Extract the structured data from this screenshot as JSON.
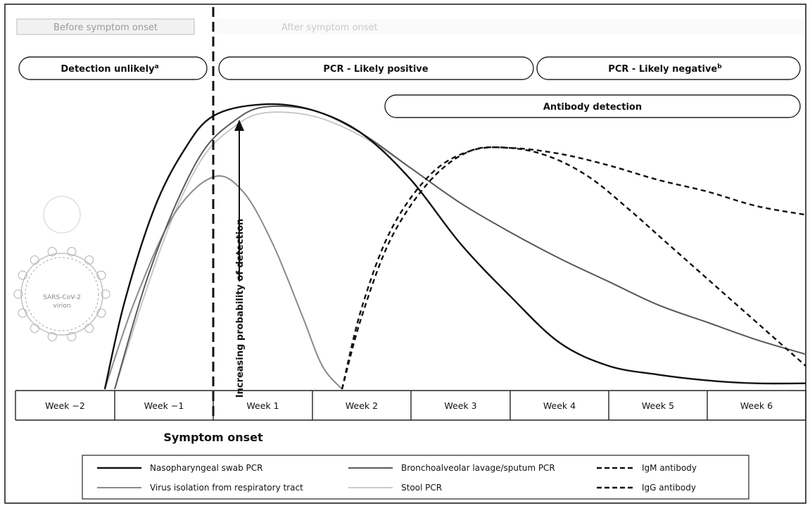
{
  "colors": {
    "black": "#111111",
    "gray_dark": "#5a5a5a",
    "gray_mid": "#8a8a8a",
    "gray_light": "#c8c8c8"
  },
  "header": {
    "before_label": "Before symptom onset",
    "after_label": "After symptom onset"
  },
  "phases": {
    "detection_unlikely": "Detection unlikely",
    "detection_unlikely_sup": "a",
    "pcr_positive": "PCR - Likely positive",
    "pcr_negative": "PCR - Likely negative",
    "pcr_negative_sup": "b",
    "antibody": "Antibody detection"
  },
  "arrow_label": "Increasing probability of detection",
  "onset_label": "Symptom onset",
  "virus_label_1": "SARS-CoV-2",
  "virus_label_2": "virion",
  "chart_data": {
    "type": "line",
    "xlabel": "",
    "ylabel": "Increasing probability of detection",
    "categories": [
      "Week −2",
      "Week −1",
      "Week 1",
      "Week 2",
      "Week 3",
      "Week 4",
      "Week 5",
      "Week 6"
    ],
    "x_range_weeks": [
      -2,
      6
    ],
    "ylim": [
      0,
      100
    ],
    "symptom_onset_x": 0,
    "series": [
      {
        "name": "Nasopharyngeal swab PCR",
        "style": "solid",
        "shade": "black",
        "x": [
          -1.1,
          -0.9,
          -0.6,
          -0.3,
          0,
          0.5,
          1.0,
          1.5,
          2.0,
          2.5,
          3.0,
          3.5,
          4.0,
          4.5,
          5.0,
          5.5,
          6.0
        ],
        "y": [
          0,
          30,
          62,
          82,
          94,
          98,
          96,
          88,
          72,
          50,
          32,
          16,
          8,
          5,
          3,
          2,
          2
        ]
      },
      {
        "name": "Bronchoalveolar lavage/sputum PCR",
        "style": "solid",
        "shade": "gray_dark",
        "x": [
          -1.0,
          -0.7,
          -0.4,
          -0.1,
          0.2,
          0.5,
          1.0,
          1.5,
          2.0,
          2.5,
          3.0,
          3.5,
          4.0,
          4.5,
          5.0,
          5.5,
          6.0
        ],
        "y": [
          0,
          35,
          62,
          82,
          92,
          97,
          96,
          88,
          76,
          64,
          54,
          45,
          37,
          29,
          23,
          17,
          12
        ]
      },
      {
        "name": "Virus isolation from respiratory tract",
        "style": "solid",
        "shade": "gray_mid",
        "x": [
          -1.1,
          -0.8,
          -0.4,
          0,
          0.3,
          0.6,
          0.9,
          1.1,
          1.3
        ],
        "y": [
          0,
          30,
          60,
          73,
          68,
          50,
          25,
          8,
          0
        ]
      },
      {
        "name": "Stool PCR",
        "style": "solid",
        "shade": "gray_light",
        "x": [
          -1.0,
          -0.7,
          -0.4,
          -0.1,
          0.2,
          0.5,
          1.0,
          1.5,
          2.0,
          2.5,
          3.0,
          3.5,
          4.0,
          4.5,
          5.0,
          5.5,
          6.0
        ],
        "y": [
          0,
          32,
          60,
          80,
          90,
          95,
          94,
          87,
          76,
          64,
          54,
          45,
          37,
          29,
          23,
          17,
          12
        ]
      },
      {
        "name": "IgM antibody",
        "style": "dashed",
        "shade": "black",
        "x": [
          1.3,
          1.5,
          1.8,
          2.2,
          2.6,
          3.0,
          3.4,
          3.8,
          4.2,
          4.6,
          5.0,
          5.4,
          5.8,
          6.0
        ],
        "y": [
          0,
          28,
          55,
          74,
          82,
          83,
          80,
          73,
          62,
          50,
          38,
          26,
          14,
          8
        ]
      },
      {
        "name": "IgG antibody",
        "style": "dashed",
        "shade": "black",
        "x": [
          1.3,
          1.5,
          1.8,
          2.2,
          2.6,
          3.0,
          3.5,
          4.0,
          4.5,
          5.0,
          5.5,
          6.0
        ],
        "y": [
          0,
          25,
          52,
          72,
          82,
          83,
          81,
          77,
          72,
          68,
          63,
          60
        ]
      }
    ]
  }
}
